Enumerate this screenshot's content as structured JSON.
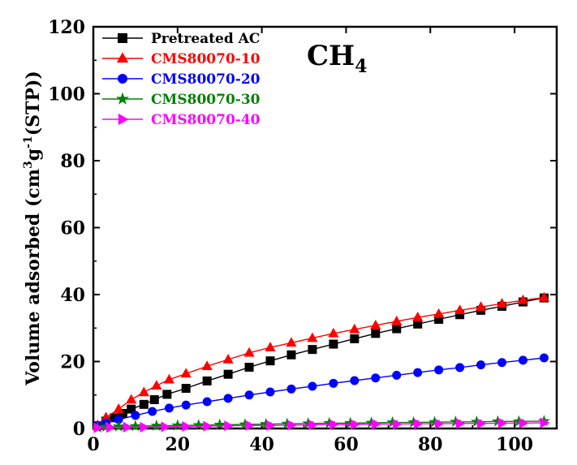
{
  "chart_data": {
    "type": "scatter",
    "xlabel": "",
    "ylabel": "Volume adsorbed (cm3g-1(STP))",
    "ylabel_parts": [
      "Volume adsorbed (cm",
      "3",
      "g",
      "-1",
      "(STP))"
    ],
    "xlim": [
      0,
      110
    ],
    "ylim": [
      0,
      120
    ],
    "x_ticks": [
      0,
      20,
      40,
      60,
      80,
      100
    ],
    "y_ticks": [
      0,
      20,
      40,
      60,
      80,
      100,
      120
    ],
    "annotation": {
      "main": "CH",
      "sub": "4"
    },
    "legend_position": "top-left",
    "grid": false,
    "series": [
      {
        "name": "Pretreated AC",
        "color": "#000000",
        "marker": "square",
        "x": [
          1,
          3,
          5,
          7,
          9,
          12,
          14.5,
          17.5,
          22,
          27,
          32,
          37,
          42,
          47,
          52,
          57,
          62,
          67,
          72,
          77,
          82,
          87,
          92,
          97,
          102,
          107
        ],
        "y": [
          0.8,
          2.2,
          3.2,
          4.5,
          5.8,
          7.2,
          8.6,
          10.2,
          12.0,
          14.2,
          16.2,
          18.3,
          20.2,
          22.0,
          23.6,
          25.2,
          26.8,
          28.4,
          29.8,
          31.2,
          32.6,
          34.0,
          35.3,
          36.5,
          37.8,
          39.0
        ]
      },
      {
        "name": "CMS80070-10",
        "color": "#ff0000",
        "marker": "triangle-up",
        "x": [
          1,
          3,
          6,
          9,
          12,
          15,
          18,
          22,
          27,
          32,
          37,
          42,
          47,
          52,
          57,
          62,
          67,
          72,
          77,
          82,
          87,
          92,
          97,
          102,
          107
        ],
        "y": [
          1.0,
          3.3,
          5.8,
          8.6,
          10.8,
          12.8,
          14.6,
          16.4,
          18.6,
          20.6,
          22.6,
          24.2,
          25.6,
          27.0,
          28.4,
          29.6,
          30.8,
          32.0,
          33.2,
          34.2,
          35.3,
          36.3,
          37.3,
          38.3,
          39.1
        ]
      },
      {
        "name": "CMS80070-20",
        "color": "#0000ff",
        "marker": "circle",
        "x": [
          1,
          3,
          6,
          10,
          14,
          18,
          22,
          27,
          32,
          37,
          42,
          47,
          52,
          57,
          62,
          67,
          72,
          77,
          82,
          87,
          92,
          97,
          102,
          107
        ],
        "y": [
          0.8,
          1.7,
          2.7,
          3.9,
          5.1,
          6.1,
          7.0,
          8.0,
          9.0,
          10.0,
          10.9,
          11.8,
          12.6,
          13.5,
          14.3,
          15.1,
          15.9,
          16.7,
          17.5,
          18.2,
          19.0,
          19.7,
          20.4,
          21.1
        ]
      },
      {
        "name": "CMS80070-30",
        "color": "#008000",
        "marker": "star",
        "x": [
          1,
          3,
          6,
          10,
          15,
          20,
          25,
          30,
          36,
          41,
          46,
          51,
          56,
          61,
          66,
          71,
          76,
          81,
          86,
          91,
          96,
          101,
          107
        ],
        "y": [
          0.3,
          0.5,
          0.6,
          0.7,
          0.8,
          0.9,
          1.0,
          1.1,
          1.2,
          1.3,
          1.4,
          1.5,
          1.6,
          1.6,
          1.7,
          1.8,
          1.8,
          1.9,
          2.0,
          2.0,
          2.1,
          2.1,
          2.2
        ]
      },
      {
        "name": "CMS80070-40",
        "color": "#ff00ff",
        "marker": "triangle-right",
        "x": [
          1,
          4,
          8,
          12,
          17,
          22,
          27,
          32,
          37,
          42,
          47,
          52,
          57,
          62,
          67,
          72,
          77,
          82,
          87,
          92,
          97,
          102,
          107
        ],
        "y": [
          0.2,
          0.3,
          0.4,
          0.4,
          0.5,
          0.6,
          0.7,
          0.8,
          0.9,
          0.9,
          1.0,
          1.1,
          1.2,
          1.2,
          1.3,
          1.3,
          1.4,
          1.4,
          1.5,
          1.5,
          1.6,
          1.6,
          1.7
        ]
      }
    ]
  }
}
